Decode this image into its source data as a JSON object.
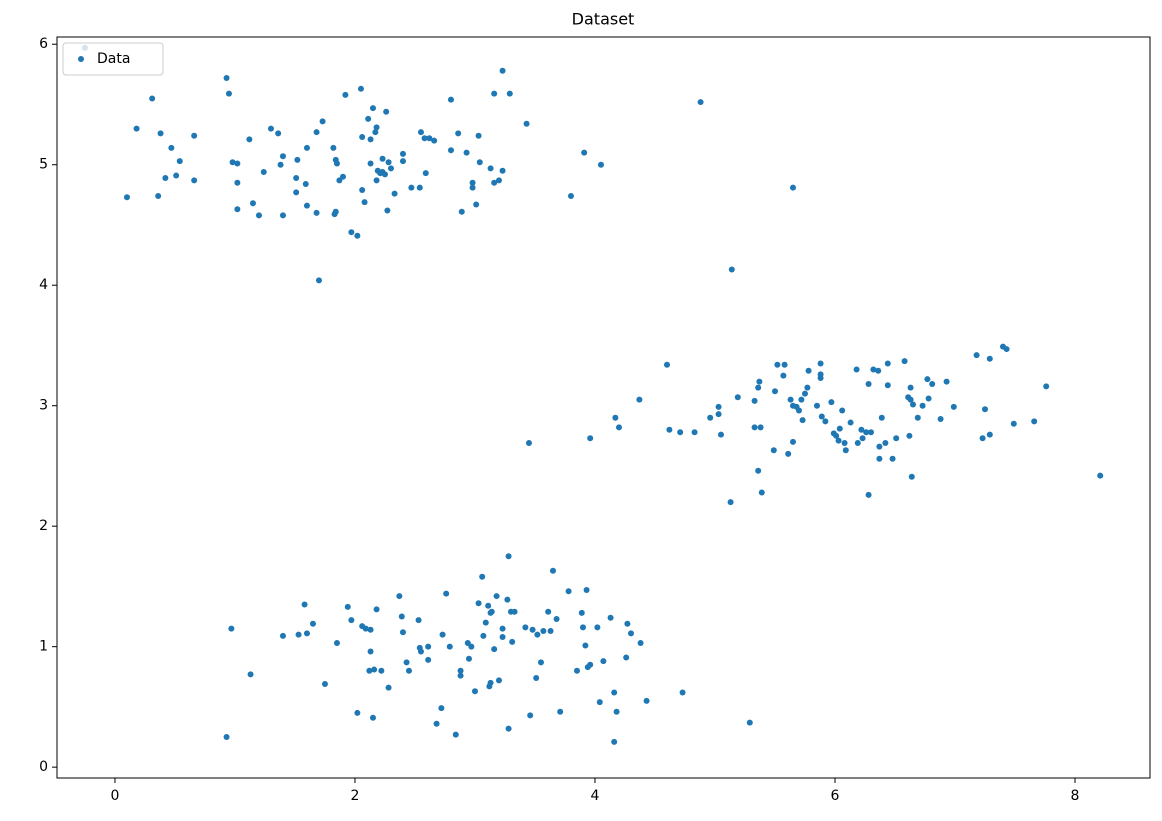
{
  "chart_data": {
    "type": "scatter",
    "title": "Dataset",
    "legend": "upper left",
    "xlim": [
      -0.483,
      8.625
    ],
    "ylim": [
      -0.09,
      6.06
    ],
    "xticks": [
      0,
      2,
      4,
      6,
      8
    ],
    "yticks": [
      0,
      1,
      2,
      3,
      4,
      5,
      6
    ],
    "series": [
      {
        "name": "Data",
        "color": "#1f77b4",
        "x": [
          -0.25,
          0.1,
          0.18,
          0.31,
          0.38,
          0.36,
          0.42,
          0.47,
          0.51,
          0.54,
          0.66,
          0.66,
          0.93,
          0.95,
          0.98,
          1.02,
          1.02,
          1.02,
          1.12,
          1.15,
          1.2,
          1.24,
          1.3,
          1.36,
          1.38,
          1.4,
          1.4,
          1.51,
          1.51,
          1.52,
          1.59,
          1.6,
          1.6,
          1.68,
          1.68,
          1.73,
          1.7,
          1.82,
          1.84,
          1.85,
          1.84,
          1.83,
          1.87,
          1.9,
          1.92,
          1.97,
          2.02,
          2.05,
          2.06,
          2.06,
          2.08,
          2.11,
          2.13,
          2.13,
          2.15,
          2.17,
          2.18,
          2.18,
          2.19,
          2.21,
          2.23,
          2.23,
          2.26,
          2.25,
          2.27,
          2.28,
          2.3,
          2.33,
          2.4,
          2.4,
          2.47,
          2.54,
          2.55,
          2.58,
          2.59,
          2.62,
          2.66,
          2.8,
          2.8,
          2.86,
          2.89,
          2.93,
          2.98,
          2.98,
          3.01,
          3.03,
          3.04,
          3.13,
          3.16,
          3.16,
          3.2,
          3.23,
          3.23,
          3.29,
          3.43,
          3.8,
          3.91,
          4.05,
          4.88,
          5.65,
          5.14,
          3.45,
          3.96,
          4.17,
          4.2,
          4.37,
          4.6,
          4.62,
          4.71,
          4.83,
          4.96,
          5.03,
          5.03,
          5.05,
          5.13,
          5.19,
          5.33,
          5.33,
          5.36,
          5.37,
          5.36,
          5.38,
          5.39,
          5.49,
          5.5,
          5.52,
          5.58,
          5.57,
          5.61,
          5.63,
          5.65,
          5.65,
          5.68,
          5.7,
          5.72,
          5.73,
          5.75,
          5.77,
          5.78,
          5.85,
          5.88,
          5.88,
          5.88,
          5.89,
          5.92,
          5.97,
          5.99,
          6.01,
          6.03,
          6.04,
          6.06,
          6.08,
          6.09,
          6.13,
          6.18,
          6.19,
          6.22,
          6.23,
          6.26,
          6.28,
          6.28,
          6.3,
          6.32,
          6.36,
          6.37,
          6.37,
          6.39,
          6.42,
          6.44,
          6.44,
          6.48,
          6.51,
          6.58,
          6.61,
          6.62,
          6.63,
          6.63,
          6.64,
          6.65,
          6.69,
          6.73,
          6.77,
          6.78,
          6.81,
          6.88,
          6.93,
          6.99,
          7.18,
          7.23,
          7.25,
          7.29,
          7.29,
          7.4,
          7.43,
          7.49,
          7.66,
          7.76,
          8.21,
          0.93,
          0.97,
          1.13,
          1.4,
          1.53,
          1.58,
          1.6,
          1.65,
          1.75,
          1.85,
          1.94,
          1.97,
          2.02,
          2.06,
          2.09,
          2.12,
          2.13,
          2.13,
          2.15,
          2.16,
          2.18,
          2.22,
          2.28,
          2.37,
          2.39,
          2.4,
          2.43,
          2.45,
          2.53,
          2.54,
          2.55,
          2.61,
          2.61,
          2.68,
          2.72,
          2.73,
          2.76,
          2.79,
          2.84,
          2.88,
          2.88,
          2.94,
          2.95,
          2.97,
          3.0,
          3.03,
          3.06,
          3.07,
          3.09,
          3.11,
          3.12,
          3.13,
          3.13,
          3.14,
          3.16,
          3.18,
          3.2,
          3.23,
          3.23,
          3.27,
          3.28,
          3.28,
          3.3,
          3.31,
          3.33,
          3.42,
          3.46,
          3.48,
          3.51,
          3.52,
          3.55,
          3.57,
          3.61,
          3.63,
          3.65,
          3.68,
          3.71,
          3.78,
          3.85,
          3.89,
          3.9,
          3.92,
          3.93,
          3.94,
          3.96,
          4.02,
          4.04,
          4.07,
          4.13,
          4.16,
          4.16,
          4.18,
          4.26,
          4.27,
          4.3,
          4.38,
          4.43,
          4.73,
          5.29
        ],
        "values": [
          5.97,
          4.73,
          5.3,
          5.55,
          5.26,
          4.74,
          4.89,
          5.14,
          4.91,
          5.03,
          4.87,
          5.24,
          5.72,
          5.59,
          5.02,
          5.01,
          4.85,
          4.63,
          5.21,
          4.68,
          4.58,
          4.94,
          5.3,
          5.26,
          5.0,
          5.07,
          4.58,
          4.89,
          4.77,
          5.04,
          4.84,
          5.14,
          4.66,
          5.27,
          4.6,
          5.36,
          4.04,
          5.14,
          5.04,
          5.01,
          4.61,
          4.59,
          4.87,
          4.9,
          5.58,
          4.44,
          4.41,
          5.63,
          5.23,
          4.79,
          4.69,
          5.38,
          5.21,
          5.01,
          5.47,
          5.27,
          5.31,
          4.87,
          4.95,
          4.93,
          5.05,
          4.94,
          5.44,
          4.92,
          4.62,
          5.02,
          4.97,
          4.76,
          5.03,
          5.09,
          4.81,
          4.81,
          5.27,
          5.22,
          4.93,
          5.22,
          5.2,
          5.54,
          5.12,
          5.26,
          4.61,
          5.1,
          4.81,
          4.85,
          4.67,
          5.24,
          5.02,
          4.97,
          4.85,
          5.59,
          4.87,
          5.78,
          4.95,
          5.59,
          5.34,
          4.74,
          5.1,
          5.0,
          5.52,
          4.81,
          4.13,
          2.69,
          2.73,
          2.9,
          2.82,
          3.05,
          3.34,
          2.8,
          2.78,
          2.78,
          2.9,
          2.99,
          2.93,
          2.76,
          2.2,
          3.07,
          2.82,
          3.04,
          3.15,
          3.2,
          2.46,
          2.82,
          2.28,
          2.63,
          3.12,
          3.34,
          3.34,
          3.25,
          2.6,
          3.05,
          3.0,
          2.7,
          2.99,
          2.96,
          3.05,
          2.88,
          3.1,
          3.15,
          3.29,
          3.0,
          3.26,
          3.23,
          3.35,
          2.91,
          2.87,
          3.03,
          2.77,
          2.75,
          2.71,
          2.81,
          2.96,
          2.69,
          2.63,
          2.86,
          3.3,
          2.69,
          2.8,
          2.73,
          2.78,
          2.26,
          3.18,
          2.78,
          3.3,
          3.29,
          2.56,
          2.66,
          2.9,
          2.69,
          3.17,
          3.35,
          2.56,
          2.73,
          3.37,
          3.07,
          2.75,
          3.15,
          3.05,
          2.41,
          3.01,
          2.9,
          3.0,
          3.22,
          3.06,
          3.18,
          2.89,
          3.2,
          2.99,
          3.42,
          2.73,
          2.97,
          3.39,
          2.76,
          3.49,
          3.47,
          2.85,
          2.87,
          3.16,
          2.42,
          0.25,
          1.15,
          0.77,
          1.09,
          1.1,
          1.35,
          1.11,
          1.19,
          0.69,
          1.03,
          1.33,
          1.22,
          0.45,
          1.17,
          1.15,
          0.8,
          0.96,
          1.14,
          0.41,
          0.81,
          1.31,
          0.8,
          0.66,
          1.42,
          1.25,
          1.12,
          0.87,
          0.8,
          1.22,
          0.99,
          0.96,
          1.0,
          0.89,
          0.36,
          0.49,
          1.1,
          1.44,
          1.0,
          0.27,
          0.76,
          0.8,
          1.03,
          0.9,
          1.0,
          0.63,
          1.36,
          1.58,
          1.09,
          1.2,
          1.34,
          0.67,
          1.28,
          0.7,
          1.29,
          0.98,
          1.42,
          0.72,
          1.08,
          1.15,
          1.39,
          1.75,
          0.32,
          1.29,
          1.04,
          1.29,
          1.16,
          0.43,
          1.14,
          0.74,
          1.1,
          0.87,
          1.13,
          1.29,
          1.13,
          1.63,
          1.23,
          0.46,
          1.46,
          0.8,
          1.28,
          1.16,
          1.01,
          1.47,
          0.83,
          0.85,
          1.16,
          0.54,
          0.88,
          1.24,
          0.62,
          0.21,
          0.46,
          0.91,
          1.19,
          1.11,
          1.03,
          0.55,
          0.62,
          0.37
        ]
      }
    ]
  }
}
